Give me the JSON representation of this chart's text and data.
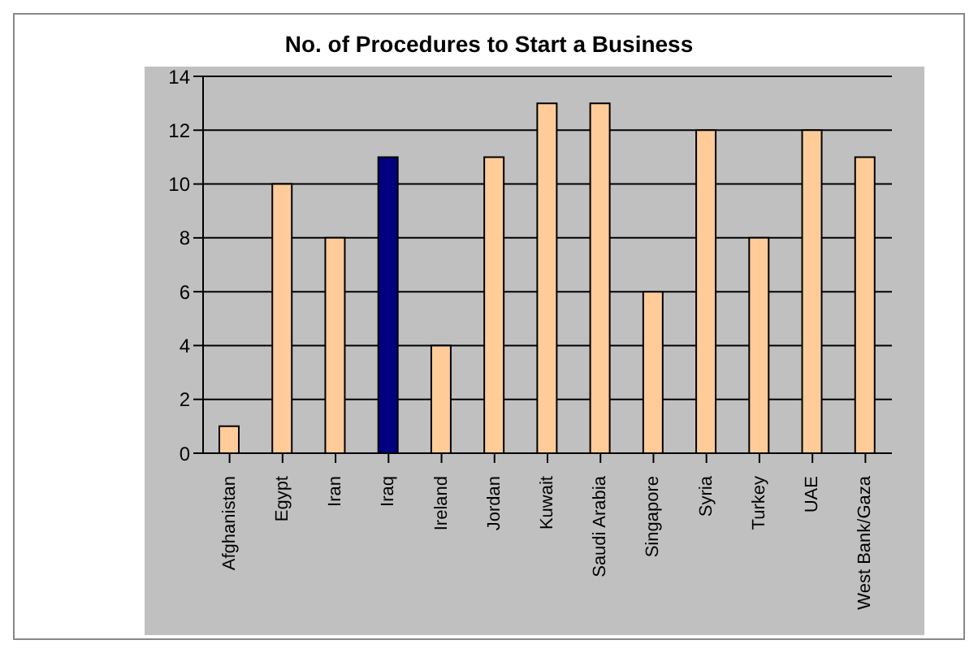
{
  "chart_data": {
    "type": "bar",
    "title": "No. of Procedures to Start a Business",
    "categories": [
      "Afghanistan",
      "Egypt",
      "Iran",
      "Iraq",
      "Ireland",
      "Jordan",
      "Kuwait",
      "Saudi Arabia",
      "Singapore",
      "Syria",
      "Turkey",
      "UAE",
      "West Bank/Gaza"
    ],
    "values": [
      1,
      10,
      8,
      11,
      4,
      11,
      13,
      13,
      6,
      12,
      8,
      12,
      11
    ],
    "colors": [
      "#ffcc99",
      "#ffcc99",
      "#ffcc99",
      "#000080",
      "#ffcc99",
      "#ffcc99",
      "#ffcc99",
      "#ffcc99",
      "#ffcc99",
      "#ffcc99",
      "#ffcc99",
      "#ffcc99",
      "#ffcc99"
    ],
    "ylim": [
      0,
      14
    ],
    "yticks": [
      0,
      2,
      4,
      6,
      8,
      10,
      12,
      14
    ],
    "grid": "y",
    "legend": false
  }
}
